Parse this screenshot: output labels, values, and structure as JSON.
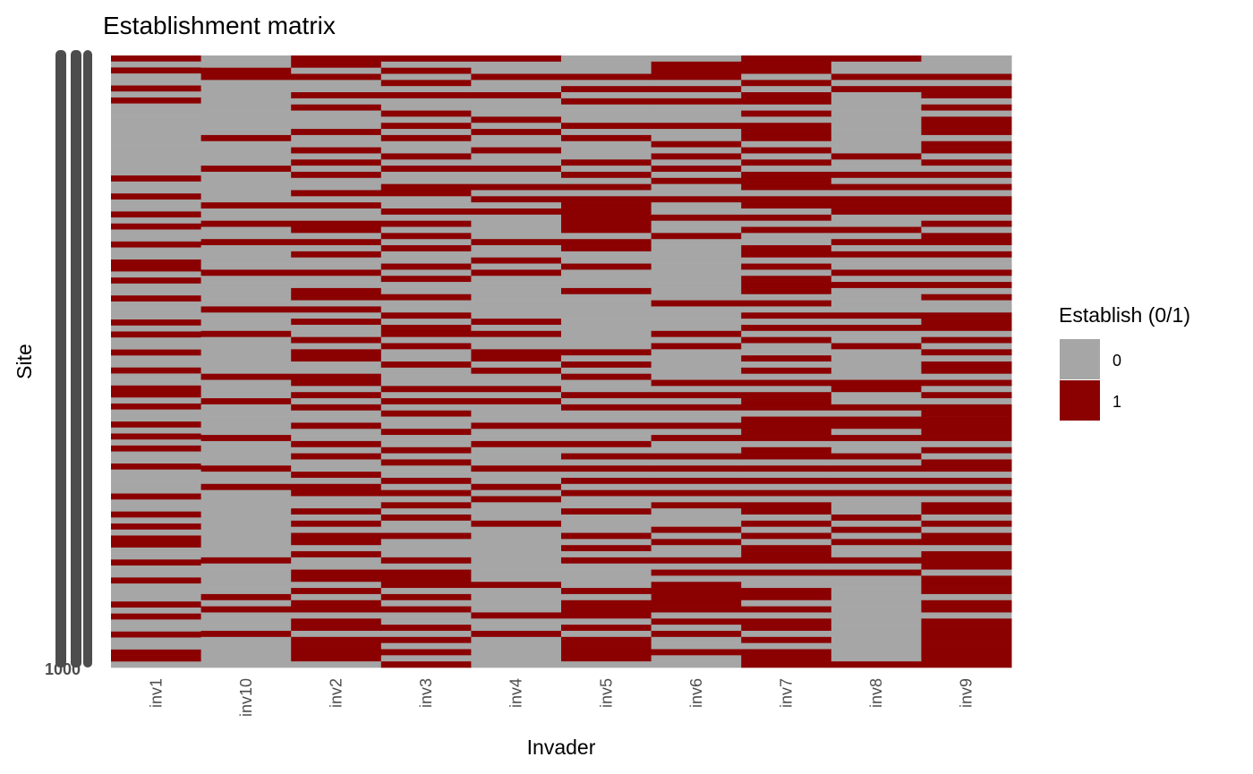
{
  "chart_data": {
    "type": "heatmap",
    "title": "Establishment matrix",
    "xlabel": "Invader",
    "ylabel": "Site",
    "categories": [
      "inv1",
      "inv10",
      "inv2",
      "inv3",
      "inv4",
      "inv5",
      "inv6",
      "inv7",
      "inv8",
      "inv9"
    ],
    "ytick_labels_visible": [
      "1000"
    ],
    "legend": {
      "title": "Establish (0/1)",
      "entries": [
        {
          "label": "0",
          "color": "#A6A6A6"
        },
        {
          "label": "1",
          "color": "#8B0000"
        }
      ],
      "placement": "right"
    },
    "grid": false,
    "values_note_resolution": "approximate, sites sampled top to bottom",
    "columns": {
      "inv1": "1010010100000000000010010010100100110100100010100100100110100101010010000100101011001001000101001001 10",
      "inv10": "0011000000000100001000001001001000010000010001000000100010000010000100100000000000100000101000100000",
      "inv2": "1101001010001001010100101001101010010011010100101100110101001001010010110010101101001101011011011110",
      "inv3": "1010101001010100101001100101010100101001001011010010001010100100101001010101001000101110101001010101",
      "inv4": "1001001000101001001001010100001001010000000101001101001010001001000100101000100000000010000100100000",
      "inv5": "0001010100010100010101011111101100100010000000001010100101001001010101010010001010100001011101011110",
      "inv6": "0111010100010010101010010010010000000000100001010000010101001010010101010100010100101011111010100100",
      "inv7": "1110101101011101010111011010100110101110101010100101010111011110110101010110101011101001101011010111",
      "inv8": "1001010000000000100101011100101010010100001010010000011001011010010101010001010100101000000000000001",
      "inv9": "0001011010111011010101011101011010010101001110101011010101111110101101010110101101110111011011111111"
    }
  }
}
